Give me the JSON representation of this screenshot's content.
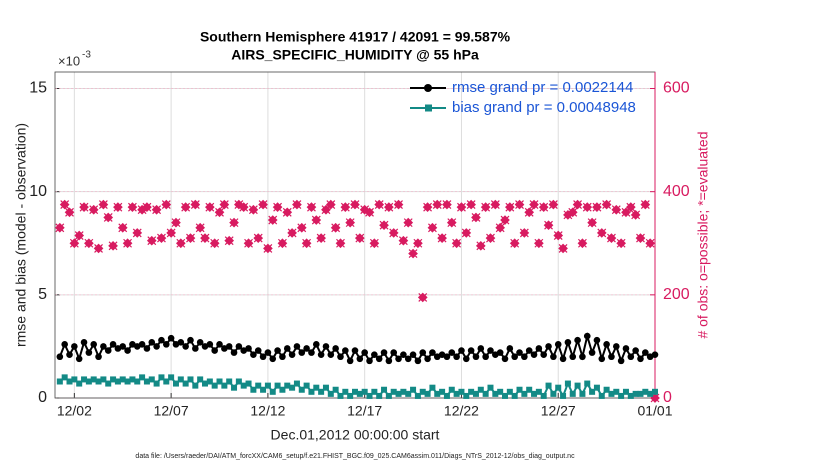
{
  "chart_data": {
    "type": "line",
    "title": "Southern Hemisphere 41917 / 42091 = 99.587%",
    "subtitle": "AIRS_SPECIFIC_HUMIDITY @ 55 hPa",
    "xlabel": "Dec.01,2012 00:00:00 start",
    "ylabel": "rmse and bias (model - observation)",
    "y2label": "# of obs: o=possible; *=evaluated",
    "y_multiplier": "×10",
    "y_multiplier_exponent": "-3",
    "footnote": "data file: /Users/raeder/DAI/ATM_forcXX/CAM6_setup/f.e21.FHIST_BGC.f09_025.CAM6assim.011/Diags_NTrS_2012-12/obs_diag_output.nc",
    "grid": true,
    "legend": "upper right",
    "xlim": [
      0,
      31
    ],
    "xticks": [
      {
        "value": 1,
        "label": "12/02"
      },
      {
        "value": 6,
        "label": "12/07"
      },
      {
        "value": 11,
        "label": "12/12"
      },
      {
        "value": 16,
        "label": "12/17"
      },
      {
        "value": 21,
        "label": "12/22"
      },
      {
        "value": 26,
        "label": "12/27"
      },
      {
        "value": 31,
        "label": "01/01"
      }
    ],
    "ylim": [
      0,
      0.0158
    ],
    "yticks": [
      0,
      {
        "value": 0.005,
        "label": "5"
      },
      {
        "value": 0.01,
        "label": "10"
      },
      {
        "value": 0.015,
        "label": "15"
      }
    ],
    "y2lim": [
      0,
      632
    ],
    "y2ticks": [
      0,
      200,
      400,
      600
    ],
    "x": [
      0.25,
      0.5,
      0.75,
      1,
      1.25,
      1.5,
      1.75,
      2,
      2.25,
      2.5,
      2.75,
      3,
      3.25,
      3.5,
      3.75,
      4,
      4.25,
      4.5,
      4.75,
      5,
      5.25,
      5.5,
      5.75,
      6,
      6.25,
      6.5,
      6.75,
      7,
      7.25,
      7.5,
      7.75,
      8,
      8.25,
      8.5,
      8.75,
      9,
      9.25,
      9.5,
      9.75,
      10,
      10.25,
      10.5,
      10.75,
      11,
      11.25,
      11.5,
      11.75,
      12,
      12.25,
      12.5,
      12.75,
      13,
      13.25,
      13.5,
      13.75,
      14,
      14.25,
      14.5,
      14.75,
      15,
      15.25,
      15.5,
      15.75,
      16,
      16.25,
      16.5,
      16.75,
      17,
      17.25,
      17.5,
      17.75,
      18,
      18.25,
      18.5,
      18.75,
      19,
      19.25,
      19.5,
      19.75,
      20,
      20.25,
      20.5,
      20.75,
      21,
      21.25,
      21.5,
      21.75,
      22,
      22.25,
      22.5,
      22.75,
      23,
      23.25,
      23.5,
      23.75,
      24,
      24.25,
      24.5,
      24.75,
      25,
      25.25,
      25.5,
      25.75,
      26,
      26.25,
      26.5,
      26.75,
      27,
      27.25,
      27.5,
      27.75,
      28,
      28.25,
      28.5,
      28.75,
      29,
      29.25,
      29.5,
      29.75,
      30,
      30.25,
      30.5,
      30.75,
      31
    ],
    "series": [
      {
        "name": "rmse grand pr = 0.0022144",
        "color": "#000000",
        "marker": "circle",
        "values": [
          0.002,
          0.0026,
          0.0021,
          0.0025,
          0.0019,
          0.0027,
          0.0022,
          0.0026,
          0.002,
          0.0025,
          0.0023,
          0.0026,
          0.0024,
          0.0025,
          0.0023,
          0.0026,
          0.0025,
          0.0026,
          0.0024,
          0.0027,
          0.0025,
          0.0028,
          0.0026,
          0.0029,
          0.0026,
          0.0027,
          0.0025,
          0.0028,
          0.0024,
          0.0027,
          0.0025,
          0.0026,
          0.0023,
          0.0026,
          0.0024,
          0.0025,
          0.0022,
          0.0025,
          0.0023,
          0.0024,
          0.0021,
          0.0023,
          0.002,
          0.0022,
          0.0019,
          0.0023,
          0.002,
          0.0024,
          0.0021,
          0.0025,
          0.0022,
          0.0024,
          0.0022,
          0.0026,
          0.0021,
          0.0025,
          0.0021,
          0.0024,
          0.002,
          0.0023,
          0.0018,
          0.0023,
          0.0019,
          0.0022,
          0.0018,
          0.0021,
          0.0019,
          0.0022,
          0.0018,
          0.0022,
          0.0019,
          0.0021,
          0.0019,
          0.0021,
          0.0018,
          0.0022,
          0.0019,
          0.0022,
          0.002,
          0.0021,
          0.002,
          0.0022,
          0.002,
          0.0023,
          0.0019,
          0.0023,
          0.002,
          0.0024,
          0.002,
          0.0023,
          0.0021,
          0.0022,
          0.0019,
          0.0024,
          0.002,
          0.0022,
          0.002,
          0.0023,
          0.0021,
          0.0024,
          0.0021,
          0.0025,
          0.002,
          0.0026,
          0.0019,
          0.0027,
          0.002,
          0.0028,
          0.002,
          0.003,
          0.0022,
          0.0028,
          0.0019,
          0.0026,
          0.002,
          0.0025,
          0.0018,
          0.0024,
          0.002,
          0.0023,
          0.0019,
          0.0022,
          0.002,
          0.0021
        ]
      },
      {
        "name": "bias grand pr = 0.00048948",
        "color": "#138a86",
        "marker": "square",
        "values": [
          0.0008,
          0.001,
          0.0008,
          0.0009,
          0.0007,
          0.0009,
          0.0008,
          0.0009,
          0.0008,
          0.0009,
          0.0007,
          0.0009,
          0.0008,
          0.0009,
          0.0008,
          0.0009,
          0.0008,
          0.001,
          0.0008,
          0.0009,
          0.0007,
          0.001,
          0.0008,
          0.001,
          0.0007,
          0.0009,
          0.0007,
          0.0009,
          0.0006,
          0.0009,
          0.0007,
          0.0008,
          0.0006,
          0.0008,
          0.0006,
          0.0008,
          0.0005,
          0.0008,
          0.0006,
          0.0007,
          0.0004,
          0.0006,
          0.0004,
          0.0006,
          0.0003,
          0.0006,
          0.0004,
          0.0006,
          0.0005,
          0.0007,
          0.0004,
          0.0006,
          0.0003,
          0.0005,
          0.0003,
          0.0005,
          0.0002,
          0.0004,
          0.0001,
          0.0003,
          0.0001,
          0.0003,
          0.0002,
          0.0003,
          0.0001,
          0.0003,
          0.0001,
          0.0004,
          0.0001,
          0.0003,
          0.0002,
          0.0003,
          0.0002,
          0.0004,
          0.0001,
          0.0003,
          0.0002,
          0.0005,
          0.0002,
          0.0003,
          0.0001,
          0.0004,
          0.0002,
          0.0003,
          0.0001,
          0.0003,
          0.0002,
          0.0004,
          0.0002,
          0.0005,
          0.0002,
          0.0003,
          0.0001,
          0.0003,
          0.0001,
          0.0004,
          0.0002,
          0.0004,
          0.0002,
          0.0003,
          0.0001,
          0.0006,
          0.0002,
          0.0005,
          0.0001,
          0.0007,
          0.0002,
          0.0006,
          0.0002,
          0.0007,
          0.0003,
          0.0005,
          0.0001,
          0.0004,
          0.0002,
          0.0003,
          0.0001,
          0.0003,
          0.0001,
          0.0002,
          0.0002,
          0.0003,
          0.0002,
          0.0003
        ]
      }
    ],
    "y2_series": [
      {
        "color": "#d81b60",
        "axis": "y2",
        "values": [
          330,
          375,
          360,
          300,
          315,
          370,
          300,
          365,
          290,
          375,
          350,
          295,
          370,
          330,
          300,
          370,
          320,
          365,
          370,
          305,
          365,
          310,
          375,
          320,
          340,
          300,
          370,
          310,
          375,
          330,
          310,
          370,
          300,
          360,
          375,
          305,
          340,
          375,
          370,
          300,
          365,
          310,
          375,
          290,
          345,
          370,
          300,
          360,
          320,
          375,
          330,
          300,
          370,
          345,
          310,
          365,
          375,
          330,
          300,
          370,
          340,
          375,
          310,
          365,
          360,
          300,
          375,
          335,
          370,
          320,
          375,
          305,
          340,
          280,
          300,
          195,
          370,
          330,
          375,
          310,
          375,
          340,
          300,
          370,
          320,
          375,
          350,
          295,
          370,
          310,
          375,
          330,
          345,
          370,
          300,
          375,
          320,
          360,
          375,
          300,
          370,
          335,
          375,
          315,
          290,
          355,
          360,
          375,
          300,
          370,
          340,
          370,
          320,
          375,
          310,
          365,
          300,
          360,
          370,
          355,
          310,
          375,
          300,
          0
        ]
      }
    ]
  }
}
